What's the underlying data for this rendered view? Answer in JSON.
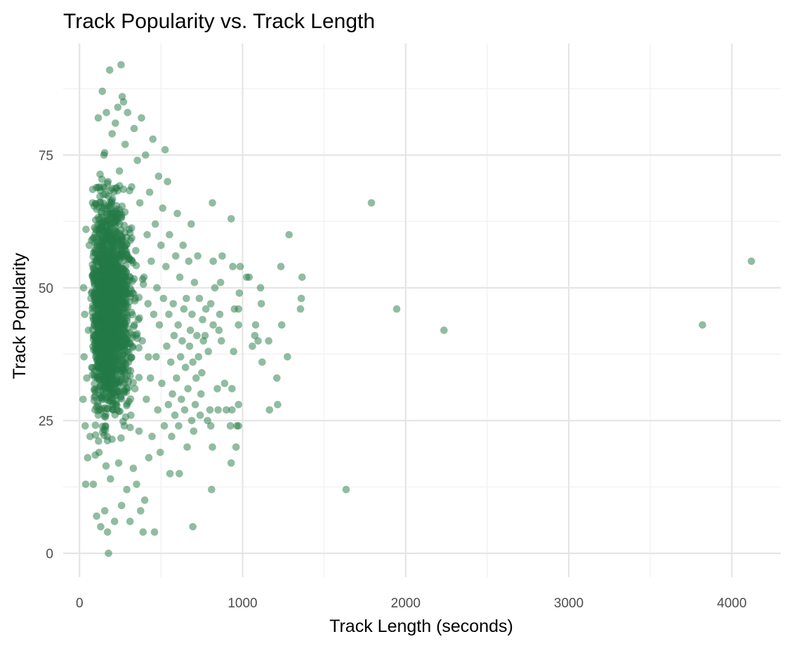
{
  "chart_data": {
    "type": "scatter",
    "title": "Track Popularity vs. Track Length",
    "xlabel": "Track Length (seconds)",
    "ylabel": "Track Popularity",
    "xlim": [
      -100,
      4300
    ],
    "ylim": [
      -4.5,
      96
    ],
    "x_ticks": [
      0,
      1000,
      2000,
      3000,
      4000
    ],
    "x_tick_labels": [
      "0",
      "1000",
      "2000",
      "3000",
      "4000"
    ],
    "y_ticks": [
      0,
      25,
      50,
      75
    ],
    "y_tick_labels": [
      "0",
      "25",
      "50",
      "75"
    ],
    "grid": true,
    "legend": "none",
    "point_color": "#237a45",
    "point_opacity": 0.5,
    "dense_cluster": {
      "description_note": "",
      "x_range": [
        30,
        600
      ],
      "y_range": [
        0,
        92
      ],
      "approx_count": 1800
    },
    "points": [
      [
        4120,
        55
      ],
      [
        3820,
        43
      ],
      [
        2235,
        42
      ],
      [
        1945,
        46
      ],
      [
        1790,
        66
      ],
      [
        1635,
        12
      ],
      [
        1365,
        52
      ],
      [
        1360,
        48
      ],
      [
        1355,
        46
      ],
      [
        1285,
        60
      ],
      [
        1275,
        37
      ],
      [
        1240,
        43
      ],
      [
        1235,
        54
      ],
      [
        1215,
        28
      ],
      [
        1210,
        33
      ],
      [
        1165,
        27
      ],
      [
        1160,
        40
      ],
      [
        1120,
        36
      ],
      [
        1115,
        47
      ],
      [
        1110,
        50
      ],
      [
        1095,
        40
      ],
      [
        1080,
        43
      ],
      [
        1075,
        41
      ],
      [
        1060,
        39
      ],
      [
        1040,
        52
      ],
      [
        1025,
        52
      ],
      [
        985,
        54
      ],
      [
        980,
        49
      ],
      [
        975,
        43
      ],
      [
        975,
        46
      ],
      [
        975,
        28
      ],
      [
        975,
        24
      ],
      [
        965,
        24
      ],
      [
        960,
        20
      ],
      [
        950,
        46
      ],
      [
        945,
        38
      ],
      [
        940,
        54
      ],
      [
        935,
        31
      ],
      [
        935,
        27
      ],
      [
        930,
        63
      ],
      [
        930,
        17
      ],
      [
        925,
        24
      ],
      [
        900,
        27
      ],
      [
        890,
        32
      ],
      [
        875,
        56
      ],
      [
        870,
        40
      ],
      [
        865,
        51
      ],
      [
        860,
        45
      ],
      [
        855,
        42
      ],
      [
        850,
        27
      ],
      [
        845,
        31
      ],
      [
        830,
        50
      ],
      [
        820,
        55
      ],
      [
        820,
        43
      ],
      [
        815,
        20
      ],
      [
        815,
        66
      ],
      [
        810,
        12
      ],
      [
        805,
        47
      ],
      [
        805,
        24
      ],
      [
        800,
        27
      ],
      [
        790,
        38
      ],
      [
        785,
        25
      ],
      [
        775,
        46
      ],
      [
        770,
        41
      ],
      [
        760,
        40
      ],
      [
        755,
        44
      ],
      [
        750,
        34
      ],
      [
        745,
        30
      ],
      [
        740,
        26
      ],
      [
        735,
        48
      ],
      [
        730,
        37
      ],
      [
        725,
        56
      ],
      [
        720,
        41
      ],
      [
        715,
        33
      ],
      [
        710,
        28
      ],
      [
        705,
        51
      ],
      [
        700,
        23
      ],
      [
        695,
        36
      ],
      [
        695,
        5
      ],
      [
        690,
        45
      ],
      [
        688,
        25
      ],
      [
        685,
        62
      ],
      [
        680,
        42
      ],
      [
        675,
        39
      ],
      [
        670,
        55
      ],
      [
        665,
        31
      ],
      [
        660,
        20
      ],
      [
        655,
        48
      ],
      [
        650,
        35
      ],
      [
        645,
        27
      ],
      [
        640,
        46
      ],
      [
        635,
        58
      ],
      [
        630,
        40
      ],
      [
        625,
        29
      ],
      [
        620,
        37
      ],
      [
        615,
        52
      ],
      [
        612,
        15
      ],
      [
        608,
        24
      ],
      [
        605,
        43
      ],
      [
        600,
        64
      ],
      [
        595,
        33
      ],
      [
        590,
        56
      ],
      [
        585,
        26
      ],
      [
        580,
        41
      ],
      [
        575,
        47
      ],
      [
        570,
        30
      ],
      [
        565,
        22
      ],
      [
        560,
        36
      ],
      [
        555,
        15
      ],
      [
        552,
        60
      ],
      [
        548,
        45
      ],
      [
        545,
        28
      ],
      [
        540,
        70
      ],
      [
        535,
        39
      ],
      [
        530,
        54
      ],
      [
        525,
        76
      ],
      [
        520,
        24
      ],
      [
        515,
        48
      ],
      [
        510,
        65
      ],
      [
        505,
        32
      ],
      [
        500,
        58
      ],
      [
        495,
        19
      ],
      [
        490,
        43
      ],
      [
        485,
        71
      ],
      [
        480,
        27
      ],
      [
        475,
        50
      ],
      [
        470,
        37
      ],
      [
        465,
        62
      ],
      [
        460,
        4
      ],
      [
        455,
        45
      ],
      [
        450,
        78
      ],
      [
        445,
        22
      ],
      [
        440,
        55
      ],
      [
        435,
        33
      ],
      [
        430,
        68
      ],
      [
        425,
        18
      ],
      [
        420,
        47
      ],
      [
        415,
        60
      ],
      [
        410,
        29
      ],
      [
        405,
        75
      ],
      [
        400,
        10
      ],
      [
        395,
        52
      ],
      [
        390,
        4
      ],
      [
        385,
        40
      ],
      [
        380,
        82
      ],
      [
        375,
        8
      ],
      [
        370,
        66
      ],
      [
        365,
        23
      ],
      [
        360,
        44
      ],
      [
        355,
        74
      ],
      [
        350,
        13
      ],
      [
        345,
        57
      ],
      [
        340,
        31
      ],
      [
        335,
        80
      ],
      [
        330,
        16
      ],
      [
        325,
        49
      ],
      [
        320,
        69
      ],
      [
        315,
        26
      ],
      [
        310,
        6
      ],
      [
        305,
        61
      ],
      [
        300,
        36
      ],
      [
        295,
        83
      ],
      [
        290,
        12
      ],
      [
        285,
        53
      ],
      [
        280,
        77
      ],
      [
        275,
        24
      ],
      [
        270,
        85
      ],
      [
        265,
        41
      ],
      [
        262,
        86
      ],
      [
        258,
        9
      ],
      [
        255,
        92
      ],
      [
        250,
        58
      ],
      [
        245,
        72
      ],
      [
        240,
        17
      ],
      [
        235,
        84
      ],
      [
        230,
        46
      ],
      [
        225,
        33
      ],
      [
        220,
        81
      ],
      [
        215,
        6
      ],
      [
        210,
        63
      ],
      [
        205,
        27
      ],
      [
        200,
        79
      ],
      [
        195,
        50
      ],
      [
        190,
        14
      ],
      [
        185,
        91
      ],
      [
        180,
        38
      ],
      [
        178,
        0
      ],
      [
        175,
        70
      ],
      [
        172,
        4
      ],
      [
        170,
        22
      ],
      [
        165,
        83
      ],
      [
        160,
        55
      ],
      [
        155,
        8
      ],
      [
        150,
        75
      ],
      [
        145,
        31
      ],
      [
        140,
        87
      ],
      [
        135,
        45
      ],
      [
        130,
        5
      ],
      [
        125,
        66
      ],
      [
        120,
        19
      ],
      [
        115,
        82
      ],
      [
        110,
        40
      ],
      [
        105,
        7
      ],
      [
        100,
        61
      ],
      [
        95,
        27
      ],
      [
        90,
        52
      ],
      [
        85,
        13
      ],
      [
        80,
        66
      ],
      [
        75,
        35
      ],
      [
        70,
        48
      ],
      [
        65,
        22
      ],
      [
        60,
        58
      ],
      [
        55,
        42
      ],
      [
        50,
        18
      ],
      [
        45,
        33
      ],
      [
        40,
        61
      ],
      [
        38,
        13
      ],
      [
        35,
        24
      ],
      [
        32,
        45
      ],
      [
        28,
        37
      ],
      [
        25,
        50
      ],
      [
        22,
        29
      ]
    ]
  }
}
